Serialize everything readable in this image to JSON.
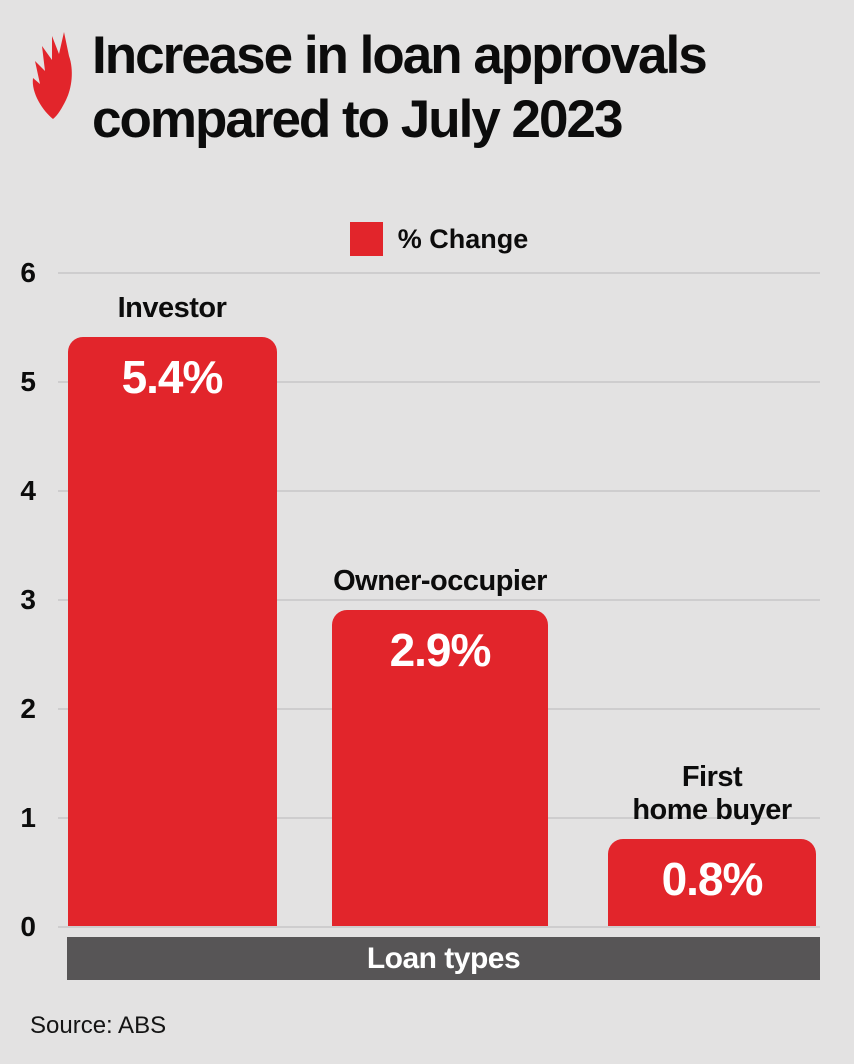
{
  "page": {
    "background_color": "#e3e2e2",
    "accent_color": "#e2252b"
  },
  "header": {
    "title_line1": "Increase in loan approvals",
    "title_line2": "compared to July 2023"
  },
  "legend": {
    "label": "% Change",
    "swatch_color": "#e2252b"
  },
  "chart_data": {
    "type": "bar",
    "title": "Increase in loan approvals compared to July 2023",
    "categories": [
      "Investor",
      "Owner-occupier",
      "First home buyer"
    ],
    "category_label_lines": [
      [
        "Investor"
      ],
      [
        "Owner-occupier"
      ],
      [
        "First",
        "home buyer"
      ]
    ],
    "values": [
      5.4,
      2.9,
      0.8
    ],
    "bar_labels": [
      "5.4%",
      "2.9%",
      "0.8%"
    ],
    "series_name": "% Change",
    "xlabel": "Loan types",
    "ylabel": "",
    "ylim": [
      0,
      6
    ],
    "yticks": [
      0,
      1,
      2,
      3,
      4,
      5,
      6
    ],
    "grid": true,
    "legend_position": "top",
    "bar_color": "#e2252b",
    "value_label_color": "#ffffff",
    "xaxis_band_color": "#575556"
  },
  "footer": {
    "source": "Source: ABS"
  }
}
